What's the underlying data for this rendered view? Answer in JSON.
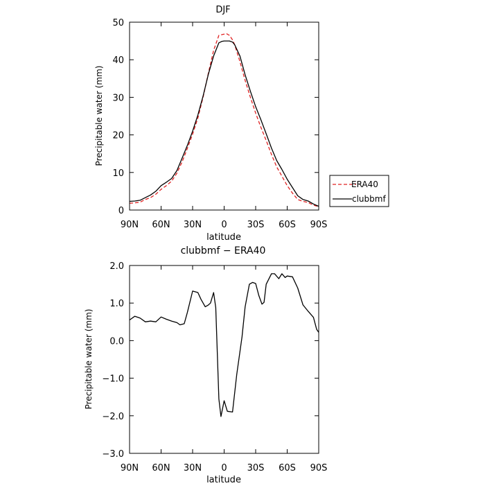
{
  "chart_data": [
    {
      "type": "line",
      "title": "DJF",
      "xlabel": "latitude",
      "ylabel": "Precipitable water (mm)",
      "x_ticks": [
        {
          "lat": -90,
          "label": "90N"
        },
        {
          "lat": -60,
          "label": "60N"
        },
        {
          "lat": -30,
          "label": "30N"
        },
        {
          "lat": 0,
          "label": "0"
        },
        {
          "lat": 30,
          "label": "30S"
        },
        {
          "lat": 60,
          "label": "60S"
        },
        {
          "lat": 90,
          "label": "90S"
        }
      ],
      "x_range": [
        -90,
        90
      ],
      "y_ticks": [
        {
          "value": 0,
          "label": "0"
        },
        {
          "value": 10,
          "label": "10"
        },
        {
          "value": 20,
          "label": "20"
        },
        {
          "value": 30,
          "label": "30"
        },
        {
          "value": 40,
          "label": "40"
        },
        {
          "value": 50,
          "label": "50"
        }
      ],
      "ylim": [
        0,
        50
      ],
      "grid": false,
      "legend_position": "right",
      "series": [
        {
          "name": "ERA40",
          "color": "#e02020",
          "dash": "dashed",
          "x": [
            -90,
            -85,
            -80,
            -75,
            -70,
            -65,
            -60,
            -55,
            -50,
            -45,
            -40,
            -35,
            -30,
            -25,
            -20,
            -15,
            -10,
            -5,
            -2,
            0,
            2,
            5,
            8,
            10,
            15,
            20,
            25,
            30,
            35,
            40,
            45,
            50,
            55,
            60,
            65,
            70,
            75,
            80,
            85,
            90
          ],
          "y": [
            1.8,
            1.9,
            2.1,
            2.8,
            3.3,
            4.2,
            5.5,
            6.5,
            7.7,
            9.8,
            12.8,
            16.4,
            20.2,
            24.5,
            30.1,
            36.5,
            42.5,
            46.5,
            46.7,
            46.8,
            47.0,
            46.5,
            45.3,
            44.0,
            39.5,
            34.5,
            30.0,
            25.8,
            22.0,
            18.5,
            14.8,
            11.5,
            9.0,
            6.5,
            4.5,
            2.8,
            2.3,
            2.0,
            1.3,
            0.9
          ]
        },
        {
          "name": "clubbmf",
          "color": "#000000",
          "dash": "solid",
          "x": [
            -90,
            -85,
            -80,
            -75,
            -70,
            -65,
            -60,
            -55,
            -50,
            -45,
            -40,
            -35,
            -30,
            -25,
            -20,
            -15,
            -10,
            -5,
            -2,
            0,
            2,
            5,
            8,
            10,
            15,
            20,
            25,
            30,
            35,
            40,
            45,
            50,
            55,
            60,
            65,
            70,
            75,
            80,
            85,
            90
          ],
          "y": [
            2.3,
            2.4,
            2.6,
            3.3,
            4.0,
            5.0,
            6.5,
            7.4,
            8.4,
            10.5,
            13.8,
            17.2,
            21.0,
            25.3,
            30.4,
            36.2,
            41.0,
            44.5,
            44.9,
            45.0,
            45.0,
            45.0,
            44.7,
            44.0,
            41.0,
            36.0,
            31.6,
            27.5,
            24.0,
            20.3,
            16.5,
            13.2,
            10.8,
            8.2,
            6.0,
            3.8,
            2.8,
            2.4,
            1.6,
            1.0
          ]
        }
      ]
    },
    {
      "type": "line",
      "title": "clubbmf − ERA40",
      "xlabel": "latitude",
      "ylabel": "Precipitable water (mm)",
      "x_ticks": [
        {
          "lat": -90,
          "label": "90N"
        },
        {
          "lat": -60,
          "label": "60N"
        },
        {
          "lat": -30,
          "label": "30N"
        },
        {
          "lat": 0,
          "label": "0"
        },
        {
          "lat": 30,
          "label": "30S"
        },
        {
          "lat": 60,
          "label": "60S"
        },
        {
          "lat": 90,
          "label": "90S"
        }
      ],
      "x_range": [
        -90,
        90
      ],
      "y_ticks": [
        {
          "value": -3,
          "label": "−3.0"
        },
        {
          "value": -2,
          "label": "−2.0"
        },
        {
          "value": -1,
          "label": "−1.0"
        },
        {
          "value": 0,
          "label": "0.0"
        },
        {
          "value": 1,
          "label": "1.0"
        },
        {
          "value": 2,
          "label": "2.0"
        }
      ],
      "ylim": [
        -3,
        2
      ],
      "grid": false,
      "series": [
        {
          "color": "#000000",
          "dash": "solid",
          "x": [
            -90,
            -85,
            -80,
            -75,
            -70,
            -65,
            -60,
            -55,
            -50,
            -45,
            -42,
            -38,
            -35,
            -30,
            -25,
            -22,
            -18,
            -15,
            -13,
            -10,
            -8,
            -5,
            -3,
            0,
            3,
            8,
            12,
            17,
            20,
            24,
            27,
            30,
            33,
            36,
            38,
            40,
            45,
            48,
            52,
            55,
            58,
            60,
            65,
            70,
            75,
            80,
            85,
            88,
            90
          ],
          "y": [
            0.55,
            0.65,
            0.6,
            0.5,
            0.52,
            0.5,
            0.63,
            0.57,
            0.52,
            0.48,
            0.42,
            0.45,
            0.75,
            1.32,
            1.28,
            1.1,
            0.9,
            0.95,
            1.0,
            1.28,
            0.88,
            -1.55,
            -2.02,
            -1.6,
            -1.88,
            -1.9,
            -0.9,
            0.1,
            0.9,
            1.5,
            1.55,
            1.52,
            1.2,
            0.97,
            1.02,
            1.5,
            1.78,
            1.78,
            1.65,
            1.78,
            1.68,
            1.72,
            1.7,
            1.4,
            0.95,
            0.78,
            0.62,
            0.3,
            0.22
          ]
        }
      ]
    }
  ]
}
